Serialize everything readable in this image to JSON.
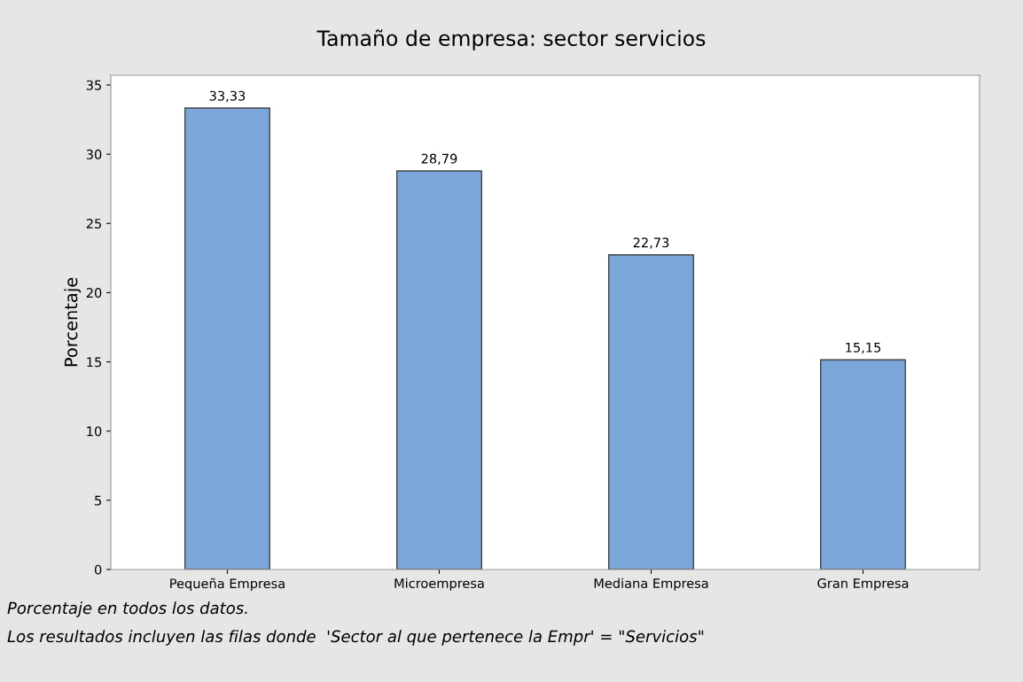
{
  "chart_data": {
    "type": "bar",
    "title": "Tamaño de empresa: sector servicios",
    "ylabel": "Porcentaje",
    "categories": [
      "Pequeña Empresa",
      "Microempresa",
      "Mediana Empresa",
      "Gran Empresa"
    ],
    "values": [
      33.33,
      28.79,
      22.73,
      15.15
    ],
    "value_labels": [
      "33,33",
      "28,79",
      "22,73",
      "15,15"
    ],
    "color": "#7ba6da",
    "ylim": [
      0,
      35.7
    ],
    "yticks": [
      0,
      5,
      10,
      15,
      20,
      25,
      30,
      35
    ],
    "grid": false,
    "legend": false,
    "annotations": [
      "Porcentaje en todos los datos.",
      "Los resultados incluyen las filas donde  'Sector al que pertenece la Empr' = \"Servicios\""
    ]
  }
}
